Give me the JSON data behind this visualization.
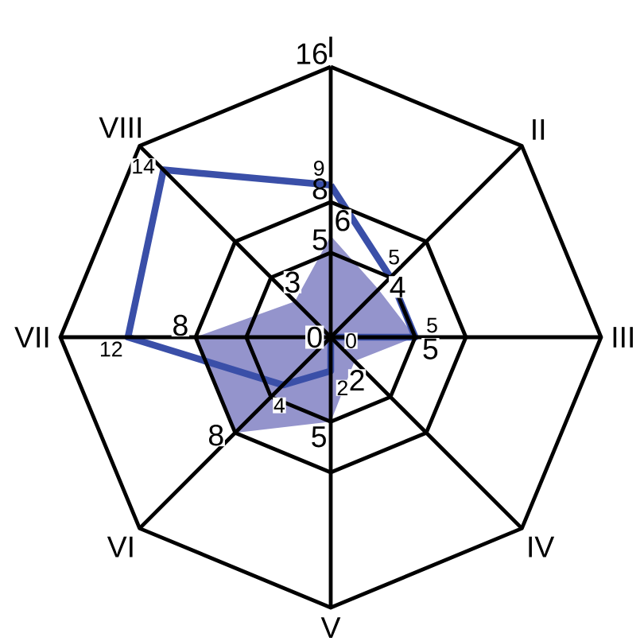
{
  "chart_data": {
    "type": "radar",
    "categories": [
      "I",
      "II",
      "III",
      "IV",
      "V",
      "VI",
      "VII",
      "VIII"
    ],
    "series": [
      {
        "color": "#9494cc",
        "values": [
          6,
          4,
          5,
          2,
          5,
          8,
          8,
          3
        ]
      },
      {
        "color": "#3a4fa8",
        "values": [
          9,
          5,
          5,
          0,
          2,
          4,
          12,
          14
        ]
      }
    ],
    "ylim": [
      0,
      16
    ],
    "yticks": [
      0,
      5,
      8,
      16
    ],
    "grid": true,
    "data_labels": true
  }
}
